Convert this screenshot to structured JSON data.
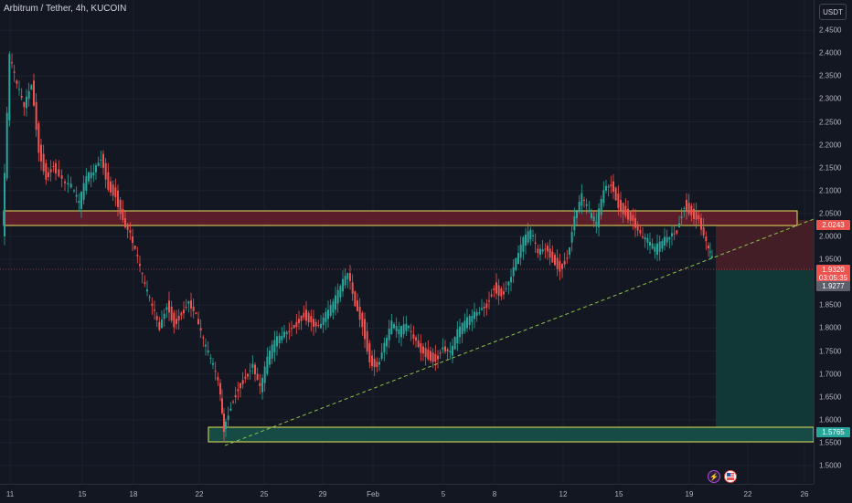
{
  "header": {
    "title": "Arbitrum / Tether, 4h, KUCOIN",
    "currency": "USDT"
  },
  "price_axis": {
    "ticks": [
      "2.4500",
      "2.4000",
      "2.3500",
      "2.3000",
      "2.2500",
      "2.2000",
      "2.1500",
      "2.1000",
      "2.0500",
      "2.0000",
      "1.9500",
      "1.8500",
      "1.8000",
      "1.7500",
      "1.7000",
      "1.6500",
      "1.6000",
      "1.5500",
      "1.5000"
    ]
  },
  "time_axis": {
    "ticks": [
      "11",
      "15",
      "18",
      "22",
      "25",
      "29",
      "Feb",
      "5",
      "8",
      "12",
      "15",
      "19",
      "22",
      "26"
    ]
  },
  "badges": {
    "resistance_price": "2.0243",
    "current_price": "1.9320",
    "countdown": "03:05:35",
    "entry_price": "1.9277",
    "support_price": "1.5765"
  },
  "icons": {
    "flash": "lightning-icon",
    "flag": "us-flag-icon"
  },
  "colors": {
    "background": "#131722",
    "up": "#26a69a",
    "down": "#ef5350",
    "resistance_fill": "#5b1d29",
    "support_fill": "#154a45",
    "zone_border": "#e5e05a",
    "trendline": "#8bc34a"
  }
}
